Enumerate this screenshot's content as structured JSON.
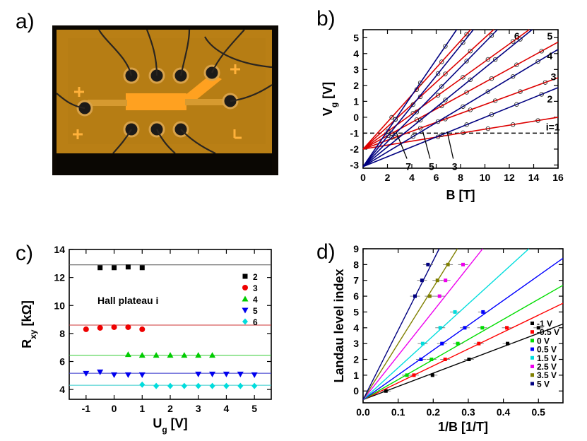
{
  "panels": {
    "a": {
      "label": "a)"
    },
    "b": {
      "label": "b)"
    },
    "c": {
      "label": "c)"
    },
    "d": {
      "label": "d)"
    }
  },
  "chart_data": [
    {
      "panel": "b",
      "type": "scatter",
      "xlabel": "B [T]",
      "ylabel": "V_g [V]",
      "xlim": [
        0,
        16
      ],
      "ylim": [
        -3.2,
        5.5
      ],
      "xticks": [
        0,
        2,
        4,
        6,
        8,
        10,
        12,
        14,
        16
      ],
      "yticks": [
        -3,
        -2,
        -1,
        0,
        1,
        2,
        3,
        4,
        5
      ],
      "fan_lines": [
        {
          "label": "i=1",
          "color": "#dd0000",
          "intercept": -2.0,
          "slope": 0.125
        },
        {
          "label": "2",
          "color": "#000080",
          "intercept": -3.1,
          "slope": 0.31
        },
        {
          "label": "3",
          "color": "#dd0000",
          "intercept": -2.0,
          "slope": 0.28
        },
        {
          "label": "4",
          "color": "#000080",
          "intercept": -3.1,
          "slope": 0.46
        },
        {
          "label": "5",
          "color": "#dd0000",
          "intercept": -2.0,
          "slope": 0.42
        },
        {
          "label": "6",
          "color": "#000080",
          "intercept": -3.1,
          "slope": 0.62
        },
        {
          "label": "",
          "color": "#dd0000",
          "intercept": -2.0,
          "slope": 0.55
        },
        {
          "label": "",
          "color": "#000080",
          "intercept": -3.1,
          "slope": 0.78
        },
        {
          "label": "",
          "color": "#dd0000",
          "intercept": -2.0,
          "slope": 0.7
        },
        {
          "label": "",
          "color": "#000080",
          "intercept": -3.1,
          "slope": 0.95
        },
        {
          "label": "",
          "color": "#dd0000",
          "intercept": -2.0,
          "slope": 0.85
        },
        {
          "label": "",
          "color": "#000080",
          "intercept": -3.1,
          "slope": 1.12
        }
      ],
      "dashed_line": {
        "y": -1
      },
      "arrow_labels": [
        {
          "text": "7",
          "x": 3.6,
          "y": -3.1,
          "to_x": 2.7,
          "to_y": -0.9
        },
        {
          "text": "5",
          "x": 5.5,
          "y": -3.1,
          "to_x": 4.9,
          "to_y": -0.9
        },
        {
          "text": "3",
          "x": 7.4,
          "y": -3.1,
          "to_x": 6.9,
          "to_y": -0.9
        }
      ]
    },
    {
      "panel": "c",
      "type": "scatter",
      "xlabel": "U_g [V]",
      "ylabel": "R_xy [kΩ]",
      "xlim": [
        -1.6,
        5.6
      ],
      "ylim": [
        3.3,
        14.0
      ],
      "xticks": [
        -1,
        0,
        1,
        2,
        3,
        4,
        5
      ],
      "yticks": [
        4,
        6,
        8,
        10,
        12,
        14
      ],
      "annotation": "Hall plateau i",
      "reference_lines": [
        {
          "y": 12.9,
          "color": "#555555"
        },
        {
          "y": 8.6,
          "color": "#cc3333"
        },
        {
          "y": 6.45,
          "color": "#33cc33"
        },
        {
          "y": 5.16,
          "color": "#3333cc"
        },
        {
          "y": 4.3,
          "color": "#33cccc"
        }
      ],
      "series": [
        {
          "name": "2",
          "color": "#000000",
          "marker": "square",
          "x": [
            -0.5,
            0,
            0.5,
            1
          ],
          "y": [
            12.7,
            12.7,
            12.75,
            12.7
          ]
        },
        {
          "name": "3",
          "color": "#ee0000",
          "marker": "circle",
          "x": [
            -1,
            -0.5,
            0,
            0.5,
            1
          ],
          "y": [
            8.3,
            8.4,
            8.45,
            8.45,
            8.3
          ]
        },
        {
          "name": "4",
          "color": "#00cc00",
          "marker": "triangle-up",
          "x": [
            0.5,
            1,
            1.5,
            2,
            2.5,
            3,
            3.5
          ],
          "y": [
            6.5,
            6.45,
            6.45,
            6.45,
            6.45,
            6.45,
            6.45
          ]
        },
        {
          "name": "5",
          "color": "#0000ee",
          "marker": "triangle-down",
          "x": [
            -1,
            -0.5,
            0,
            0.5,
            1,
            3,
            3.5,
            4,
            4.5,
            5
          ],
          "y": [
            5.15,
            5.25,
            5.05,
            5.05,
            5.05,
            5.1,
            5.1,
            5.1,
            5.1,
            5.05
          ]
        },
        {
          "name": "6",
          "color": "#00dddd",
          "marker": "diamond",
          "x": [
            1,
            1.5,
            2,
            2.5,
            3,
            3.5,
            4,
            4.5,
            5
          ],
          "y": [
            4.35,
            4.25,
            4.25,
            4.25,
            4.25,
            4.25,
            4.25,
            4.25,
            4.25
          ]
        }
      ]
    },
    {
      "panel": "d",
      "type": "scatter",
      "xlabel": "1/B [1/T]",
      "ylabel": "Landau level index",
      "xlim": [
        0.0,
        0.57
      ],
      "ylim": [
        -0.75,
        9
      ],
      "xticks": [
        0.0,
        0.1,
        0.2,
        0.3,
        0.4,
        0.5
      ],
      "yticks": [
        0,
        1,
        2,
        3,
        4,
        5,
        6,
        7,
        8,
        9
      ],
      "fit_intercept": -0.55,
      "series": [
        {
          "name": "-1 V",
          "color": "#000000",
          "slope": 8.4,
          "x": [
            0.065,
            0.198,
            0.302,
            0.412,
            0.5
          ],
          "y": [
            0,
            1,
            2,
            3,
            4
          ]
        },
        {
          "name": "-0.5 V",
          "color": "#ff0000",
          "slope": 10.7,
          "x": [
            0.145,
            0.234,
            0.33,
            0.41
          ],
          "y": [
            1,
            2,
            3,
            4
          ]
        },
        {
          "name": "0 V",
          "color": "#00dd00",
          "slope": 12.7,
          "x": [
            0.125,
            0.195,
            0.27,
            0.34
          ],
          "y": [
            1,
            2,
            3,
            4
          ]
        },
        {
          "name": "0.5 V",
          "color": "#0000ff",
          "slope": 15.7,
          "x": [
            0.165,
            0.225,
            0.29,
            0.342
          ],
          "y": [
            2,
            3,
            4,
            5
          ]
        },
        {
          "name": "1.5 V",
          "color": "#00dddd",
          "slope": 20.2,
          "x": [
            0.17,
            0.22,
            0.262
          ],
          "y": [
            3,
            4,
            5
          ]
        },
        {
          "name": "2.5 V",
          "color": "#ee00ee",
          "slope": 28.0,
          "x": [
            0.218,
            0.235,
            0.285
          ],
          "y": [
            6,
            7,
            8
          ]
        },
        {
          "name": "3.5 V",
          "color": "#808000",
          "slope": 35.5,
          "x": [
            0.19,
            0.212,
            0.242
          ],
          "y": [
            6,
            7,
            8
          ]
        },
        {
          "name": "5 V",
          "color": "#000080",
          "slope": 44.0,
          "x": [
            0.148,
            0.168,
            0.185
          ],
          "y": [
            6,
            7,
            8
          ]
        }
      ]
    }
  ]
}
